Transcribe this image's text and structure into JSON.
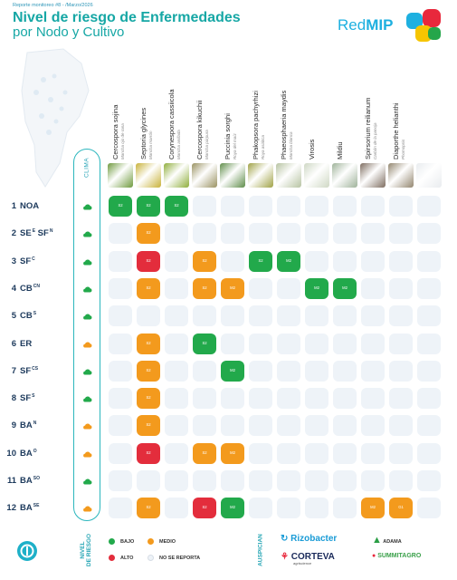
{
  "header": {
    "note": "Reporte monitoreo #8 - /Marzo/2026",
    "title": "Nivel de riesgo de Enfermedades",
    "subtitle": "por Nodo y Cultivo",
    "brand_plain": "Red",
    "brand_bold": "MIP"
  },
  "clima_label": "CLIMA",
  "colors": {
    "bajo": "#22a94b",
    "medio": "#f39a1d",
    "alto": "#e32d3c",
    "no_reporta": "#eef3f8",
    "accent": "#16a7a5"
  },
  "chart_data": {
    "type": "table",
    "title": "Nivel de riesgo de Enfermedades por Nodo y Cultivo",
    "columns": [
      {
        "name": "Cercospora sojina",
        "common": "Mancha ojo de rana"
      },
      {
        "name": "Septoria glycines",
        "common": "Mancha marrón"
      },
      {
        "name": "Corynespora cassiicola",
        "common": "Mancha anillada"
      },
      {
        "name": "Cercospora kikuchii",
        "common": "Mancha púrpura"
      },
      {
        "name": "Puccinia sorghi",
        "common": "Roya del maíz"
      },
      {
        "name": "Phakopsora pachyrhizi",
        "common": "Roya asiática"
      },
      {
        "name": "Phaeosphaeria maydis",
        "common": "Mancha blanca"
      },
      {
        "name": "Virosis",
        "common": ""
      },
      {
        "name": "Mildiu",
        "common": ""
      },
      {
        "name": "Spirsorium reilianum",
        "common": "Carbón de la panoja"
      },
      {
        "name": "Diaporthe helianthi",
        "common": "Phomopsis"
      },
      {
        "name": "",
        "common": ""
      }
    ],
    "rows": [
      {
        "num": "1",
        "label": "NOA",
        "sup": "",
        "weather": "green",
        "cells": [
          [
            "bajo",
            "S2"
          ],
          [
            "bajo",
            "S2"
          ],
          [
            "bajo",
            "S2"
          ],
          [
            "none",
            ""
          ],
          [
            "none",
            ""
          ],
          [
            "none",
            ""
          ],
          [
            "none",
            ""
          ],
          [
            "none",
            ""
          ],
          [
            "none",
            ""
          ],
          [
            "none",
            ""
          ],
          [
            "none",
            ""
          ],
          [
            "none",
            ""
          ]
        ]
      },
      {
        "num": "2",
        "label": "SE",
        "sup": "E",
        "label2": " SF",
        "sup2": "N",
        "weather": "green",
        "cells": [
          [
            "none",
            ""
          ],
          [
            "medio",
            "S2"
          ],
          [
            "none",
            ""
          ],
          [
            "none",
            ""
          ],
          [
            "none",
            ""
          ],
          [
            "none",
            ""
          ],
          [
            "none",
            ""
          ],
          [
            "none",
            ""
          ],
          [
            "none",
            ""
          ],
          [
            "none",
            ""
          ],
          [
            "none",
            ""
          ],
          [
            "none",
            ""
          ]
        ]
      },
      {
        "num": "3",
        "label": "SF",
        "sup": "C",
        "weather": "green",
        "cells": [
          [
            "none",
            ""
          ],
          [
            "alto",
            "S2"
          ],
          [
            "none",
            ""
          ],
          [
            "medio",
            "S2"
          ],
          [
            "none",
            ""
          ],
          [
            "bajo",
            "S2"
          ],
          [
            "bajo",
            "M2"
          ],
          [
            "none",
            ""
          ],
          [
            "none",
            ""
          ],
          [
            "none",
            ""
          ],
          [
            "none",
            ""
          ],
          [
            "none",
            ""
          ]
        ]
      },
      {
        "num": "4",
        "label": "CB",
        "sup": "CN",
        "weather": "green",
        "cells": [
          [
            "none",
            ""
          ],
          [
            "medio",
            "S2"
          ],
          [
            "none",
            ""
          ],
          [
            "medio",
            "S2"
          ],
          [
            "medio",
            "M2"
          ],
          [
            "none",
            ""
          ],
          [
            "none",
            ""
          ],
          [
            "bajo",
            "M2"
          ],
          [
            "bajo",
            "M2"
          ],
          [
            "none",
            ""
          ],
          [
            "none",
            ""
          ],
          [
            "none",
            ""
          ]
        ]
      },
      {
        "num": "5",
        "label": "CB",
        "sup": "S",
        "weather": "green",
        "cells": [
          [
            "none",
            ""
          ],
          [
            "none",
            ""
          ],
          [
            "none",
            ""
          ],
          [
            "none",
            ""
          ],
          [
            "none",
            ""
          ],
          [
            "none",
            ""
          ],
          [
            "none",
            ""
          ],
          [
            "none",
            ""
          ],
          [
            "none",
            ""
          ],
          [
            "none",
            ""
          ],
          [
            "none",
            ""
          ],
          [
            "none",
            ""
          ]
        ]
      },
      {
        "num": "6",
        "label": "ER",
        "sup": "",
        "weather": "orange",
        "cells": [
          [
            "none",
            ""
          ],
          [
            "medio",
            "S2"
          ],
          [
            "none",
            ""
          ],
          [
            "bajo",
            "S2"
          ],
          [
            "none",
            ""
          ],
          [
            "none",
            ""
          ],
          [
            "none",
            ""
          ],
          [
            "none",
            ""
          ],
          [
            "none",
            ""
          ],
          [
            "none",
            ""
          ],
          [
            "none",
            ""
          ],
          [
            "none",
            ""
          ]
        ]
      },
      {
        "num": "7",
        "label": "SF",
        "sup": "CS",
        "weather": "green",
        "cells": [
          [
            "none",
            ""
          ],
          [
            "medio",
            "S2"
          ],
          [
            "none",
            ""
          ],
          [
            "none",
            ""
          ],
          [
            "bajo",
            "M2"
          ],
          [
            "none",
            ""
          ],
          [
            "none",
            ""
          ],
          [
            "none",
            ""
          ],
          [
            "none",
            ""
          ],
          [
            "none",
            ""
          ],
          [
            "none",
            ""
          ],
          [
            "none",
            ""
          ]
        ]
      },
      {
        "num": "8",
        "label": "SF",
        "sup": "S",
        "weather": "green",
        "cells": [
          [
            "none",
            ""
          ],
          [
            "medio",
            "S2"
          ],
          [
            "none",
            ""
          ],
          [
            "none",
            ""
          ],
          [
            "none",
            ""
          ],
          [
            "none",
            ""
          ],
          [
            "none",
            ""
          ],
          [
            "none",
            ""
          ],
          [
            "none",
            ""
          ],
          [
            "none",
            ""
          ],
          [
            "none",
            ""
          ],
          [
            "none",
            ""
          ]
        ]
      },
      {
        "num": "9",
        "label": "BA",
        "sup": "N",
        "weather": "orange",
        "cells": [
          [
            "none",
            ""
          ],
          [
            "medio",
            "S2"
          ],
          [
            "none",
            ""
          ],
          [
            "none",
            ""
          ],
          [
            "none",
            ""
          ],
          [
            "none",
            ""
          ],
          [
            "none",
            ""
          ],
          [
            "none",
            ""
          ],
          [
            "none",
            ""
          ],
          [
            "none",
            ""
          ],
          [
            "none",
            ""
          ],
          [
            "none",
            ""
          ]
        ]
      },
      {
        "num": "10",
        "label": "BA",
        "sup": "O",
        "weather": "orange",
        "cells": [
          [
            "none",
            ""
          ],
          [
            "alto",
            "S2"
          ],
          [
            "none",
            ""
          ],
          [
            "medio",
            "S2"
          ],
          [
            "medio",
            "M2"
          ],
          [
            "none",
            ""
          ],
          [
            "none",
            ""
          ],
          [
            "none",
            ""
          ],
          [
            "none",
            ""
          ],
          [
            "none",
            ""
          ],
          [
            "none",
            ""
          ],
          [
            "none",
            ""
          ]
        ]
      },
      {
        "num": "11",
        "label": "BA",
        "sup": "SO",
        "weather": "green",
        "cells": [
          [
            "none",
            ""
          ],
          [
            "none",
            ""
          ],
          [
            "none",
            ""
          ],
          [
            "none",
            ""
          ],
          [
            "none",
            ""
          ],
          [
            "none",
            ""
          ],
          [
            "none",
            ""
          ],
          [
            "none",
            ""
          ],
          [
            "none",
            ""
          ],
          [
            "none",
            ""
          ],
          [
            "none",
            ""
          ],
          [
            "none",
            ""
          ]
        ]
      },
      {
        "num": "12",
        "label": "BA",
        "sup": "SE",
        "weather": "orange",
        "cells": [
          [
            "none",
            ""
          ],
          [
            "medio",
            "S2"
          ],
          [
            "none",
            ""
          ],
          [
            "alto",
            "S2"
          ],
          [
            "bajo",
            "M2"
          ],
          [
            "none",
            ""
          ],
          [
            "none",
            ""
          ],
          [
            "none",
            ""
          ],
          [
            "none",
            ""
          ],
          [
            "medio",
            "M2"
          ],
          [
            "medio",
            "G1"
          ],
          [
            "none",
            ""
          ]
        ]
      }
    ],
    "thumb_colors": [
      "#6f9a3e",
      "#c8b23a",
      "#8fae3c",
      "#9a9262",
      "#5f8d4a",
      "#a0a246",
      "#b7c3a2",
      "#cfd8c4",
      "#9fb39a",
      "#7e6d60",
      "#93866f",
      "#e9ecef"
    ]
  },
  "legend": {
    "title_line1": "NIVEL",
    "title_line2": "DE RIESGO",
    "items": [
      {
        "key": "bajo",
        "label": "BAJO",
        "color": "#22a94b"
      },
      {
        "key": "medio",
        "label": "MEDIO",
        "color": "#f39a1d"
      },
      {
        "key": "alto",
        "label": "ALTO",
        "color": "#e32d3c"
      },
      {
        "key": "no_reporta",
        "label": "NO SE REPORTA",
        "color": "#eef3f8"
      }
    ]
  },
  "sponsors": {
    "label": "AUSPICIAN",
    "rizobacter": "Rizobacter",
    "corteva": "CORTEVA",
    "corteva_sub": "agriscience",
    "adama": "ADAMA",
    "summit": "SUMMITAGRO"
  }
}
